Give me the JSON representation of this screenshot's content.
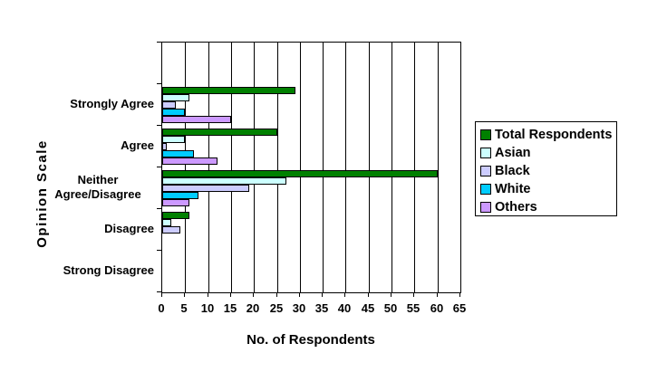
{
  "chart_data": {
    "type": "bar",
    "orientation": "horizontal",
    "xlabel": "No. of Respondents",
    "ylabel": "Opinion Scale",
    "xlim": [
      0,
      65
    ],
    "xticks": [
      0,
      5,
      10,
      15,
      20,
      25,
      30,
      35,
      40,
      45,
      50,
      55,
      60,
      65
    ],
    "grid": true,
    "legend_position": "right",
    "categories": [
      "Strongly Agree",
      "Agree",
      "Neither\nAgree/Disagree",
      "Disagree",
      "Strong Disagree"
    ],
    "series": [
      {
        "name": "Total Respondents",
        "color": "#008000",
        "values": [
          29,
          25,
          60,
          6,
          0
        ]
      },
      {
        "name": "Asian",
        "color": "#CCFFFF",
        "values": [
          6,
          5,
          27,
          2,
          0
        ]
      },
      {
        "name": "Black",
        "color": "#CCCCFF",
        "values": [
          3,
          1,
          19,
          4,
          0
        ]
      },
      {
        "name": "White",
        "color": "#00CCFF",
        "values": [
          5,
          7,
          8,
          0,
          0
        ]
      },
      {
        "name": "Others",
        "color": "#CC99FF",
        "values": [
          15,
          12,
          6,
          0,
          0
        ]
      }
    ]
  }
}
